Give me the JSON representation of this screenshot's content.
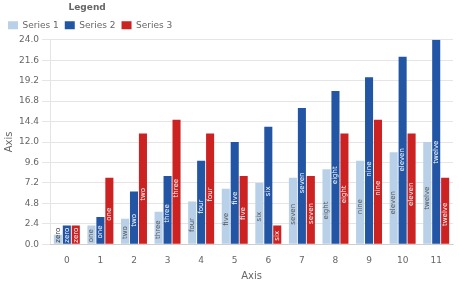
{
  "chart_data": {
    "type": "bar",
    "categories": [
      "0",
      "1",
      "2",
      "3",
      "4",
      "5",
      "6",
      "7",
      "8",
      "9",
      "10",
      "11"
    ],
    "series": [
      {
        "name": "Series 1",
        "color": "#b8d0e8",
        "values": [
          1.1,
          2.2,
          3.0,
          3.8,
          5.0,
          6.5,
          7.2,
          7.8,
          8.8,
          9.8,
          10.8,
          12.0
        ]
      },
      {
        "name": "Series 2",
        "color": "#2255a4",
        "values": [
          2.2,
          3.2,
          6.2,
          8.0,
          9.8,
          12.0,
          13.8,
          16.0,
          18.0,
          19.6,
          22.0,
          24.0
        ]
      },
      {
        "name": "Series 3",
        "color": "#cc2222",
        "values": [
          2.2,
          7.8,
          13.0,
          14.6,
          13.0,
          8.0,
          2.2,
          8.0,
          13.0,
          14.6,
          13.0,
          7.8
        ]
      }
    ],
    "xlabel": "Axis",
    "ylabel": "Axis",
    "ylim": [
      0,
      24
    ],
    "yticks": [
      {
        "value": 0,
        "label": "0.0"
      },
      2.4,
      4.8,
      7.2,
      9.6,
      {
        "value": 12.0,
        "label": "12.0"
      },
      14.4,
      16.8,
      19.2,
      21.6,
      {
        "value": 24.0,
        "label": "24.0"
      }
    ],
    "grid": "y",
    "legend": "upper left",
    "legend_title": "Legend",
    "annotations": [
      {
        "text": "zero",
        "x": "0"
      },
      {
        "text": "one",
        "x": "1"
      },
      {
        "text": "two",
        "x": "2"
      },
      {
        "text": "three",
        "x": "3"
      },
      {
        "text": "four",
        "x": "4"
      },
      {
        "text": "five",
        "x": "5"
      },
      {
        "text": "six",
        "x": "6"
      },
      {
        "text": "seven",
        "x": "7"
      },
      {
        "text": "eight",
        "x": "8"
      },
      {
        "text": "nine",
        "x": "9"
      },
      {
        "text": "eleven",
        "x": "10"
      },
      {
        "text": "twelve",
        "x": "11"
      }
    ]
  }
}
